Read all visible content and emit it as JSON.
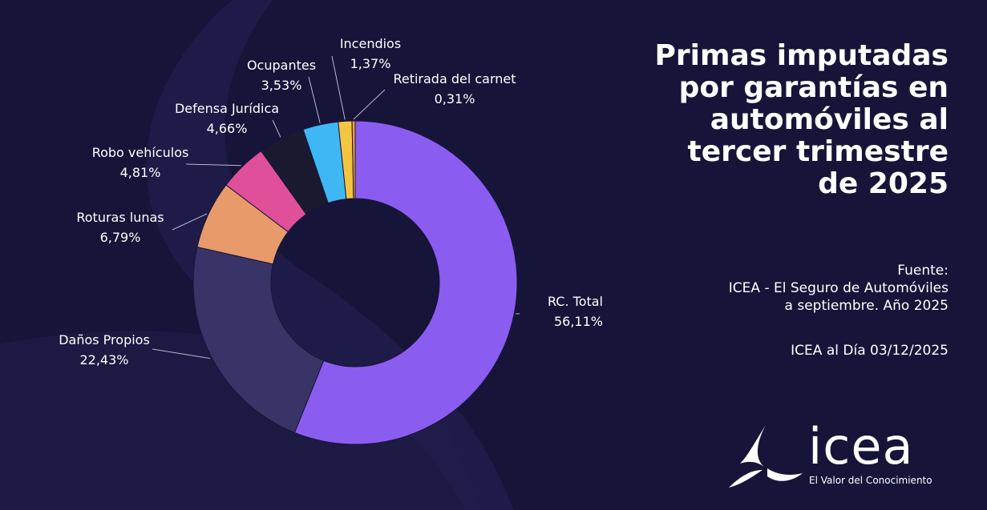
{
  "title_lines": [
    "Primas imputadas",
    "por garantías en",
    "automóviles al",
    "tercer trimestre",
    "de 2025"
  ],
  "source_lines": [
    "Fuente:",
    "ICEA - El Seguro de Automóviles",
    "a septiembre. Año 2025"
  ],
  "date_text": "ICEA al Día 03/12/2025",
  "logo": {
    "word": "icea",
    "tagline": "El Valor del Conocimiento"
  },
  "colors": {
    "background": "#17143a",
    "text": "#ffffff",
    "leader": "#b8b6cc"
  },
  "chart_data": {
    "type": "donut",
    "unit": "%",
    "decimal_separator": ",",
    "slices": [
      {
        "name": "RC. Total",
        "value": 56.11,
        "color": "#8b5cf0"
      },
      {
        "name": "Daños Propios",
        "value": 22.43,
        "color": "#383468"
      },
      {
        "name": "Roturas lunas",
        "value": 6.79,
        "color": "#e89a6a"
      },
      {
        "name": "Robo vehículos",
        "value": 4.81,
        "color": "#e04f99"
      },
      {
        "name": "Defensa Jurídica",
        "value": 4.66,
        "color": "#191930"
      },
      {
        "name": "Ocupantes",
        "value": 3.53,
        "color": "#3fb7f5"
      },
      {
        "name": "Incendios",
        "value": 1.37,
        "color": "#f4c540"
      },
      {
        "name": "Retirada del carnet",
        "value": 0.31,
        "color": "#f0a030"
      }
    ]
  }
}
